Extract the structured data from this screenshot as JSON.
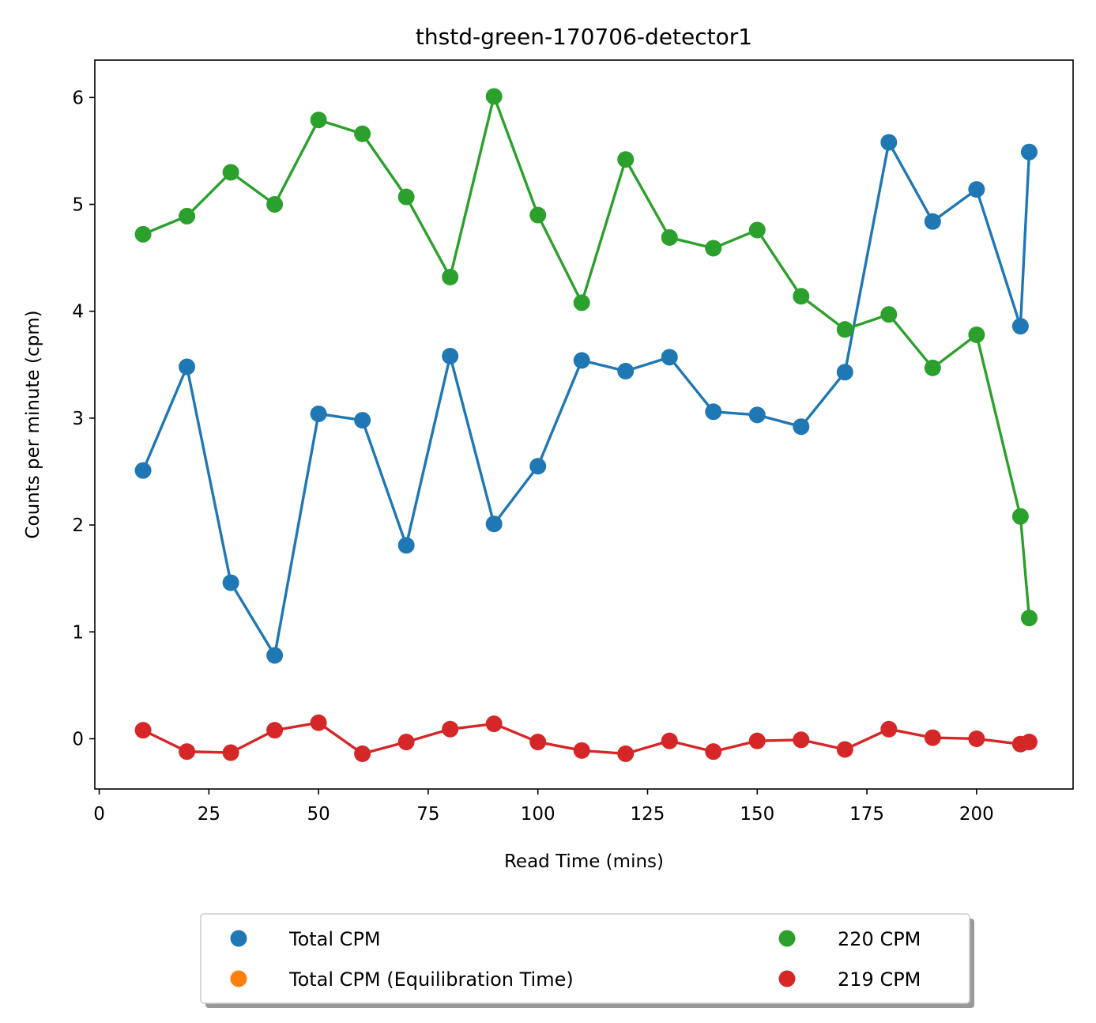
{
  "chart_data": {
    "type": "line",
    "title": "thstd-green-170706-detector1",
    "xlabel": "Read Time (mins)",
    "ylabel": "Counts per minute (cpm)",
    "xlim": [
      -1,
      222
    ],
    "ylim": [
      -0.47,
      6.35
    ],
    "xticks": [
      0,
      25,
      50,
      75,
      100,
      125,
      150,
      175,
      200
    ],
    "yticks": [
      0,
      1,
      2,
      3,
      4,
      5,
      6
    ],
    "grid": false,
    "legend_position": "bottom-center",
    "legend": [
      {
        "label": "Total CPM",
        "color": "#1f77b4"
      },
      {
        "label": "Total CPM (Equilibration Time)",
        "color": "#ff7f0e"
      },
      {
        "label": "220 CPM",
        "color": "#2ca02c"
      },
      {
        "label": "219 CPM",
        "color": "#d62728"
      }
    ],
    "series": [
      {
        "name": "Total CPM",
        "color": "#1f77b4",
        "x": [
          10,
          20,
          30,
          40,
          50,
          60,
          70,
          80,
          90,
          100,
          110,
          120,
          130,
          140,
          150,
          160,
          170,
          180,
          190,
          200,
          210,
          212
        ],
        "y": [
          2.51,
          3.48,
          1.46,
          0.78,
          3.04,
          2.98,
          1.81,
          3.58,
          2.01,
          2.55,
          3.54,
          3.44,
          3.57,
          3.06,
          3.03,
          2.92,
          3.43,
          5.58,
          4.84,
          5.14,
          3.86,
          5.49
        ]
      },
      {
        "name": "Total CPM (Equilibration Time)",
        "color": "#ff7f0e",
        "x": [],
        "y": []
      },
      {
        "name": "220 CPM",
        "color": "#2ca02c",
        "x": [
          10,
          20,
          30,
          40,
          50,
          60,
          70,
          80,
          90,
          100,
          110,
          120,
          130,
          140,
          150,
          160,
          170,
          180,
          190,
          200,
          210,
          212
        ],
        "y": [
          4.72,
          4.89,
          5.3,
          5.0,
          5.79,
          5.66,
          5.07,
          4.32,
          6.01,
          4.9,
          4.08,
          5.42,
          4.69,
          4.59,
          4.76,
          4.14,
          3.83,
          3.97,
          3.47,
          3.78,
          2.08,
          1.13
        ]
      },
      {
        "name": "219 CPM",
        "color": "#d62728",
        "x": [
          10,
          20,
          30,
          40,
          50,
          60,
          70,
          80,
          90,
          100,
          110,
          120,
          130,
          140,
          150,
          160,
          170,
          180,
          190,
          200,
          210,
          212
        ],
        "y": [
          0.08,
          -0.12,
          -0.13,
          0.08,
          0.15,
          -0.14,
          -0.03,
          0.09,
          0.14,
          -0.03,
          -0.11,
          -0.14,
          -0.02,
          -0.12,
          -0.02,
          -0.01,
          -0.1,
          0.09,
          0.01,
          0.0,
          -0.05,
          -0.03
        ]
      }
    ]
  }
}
